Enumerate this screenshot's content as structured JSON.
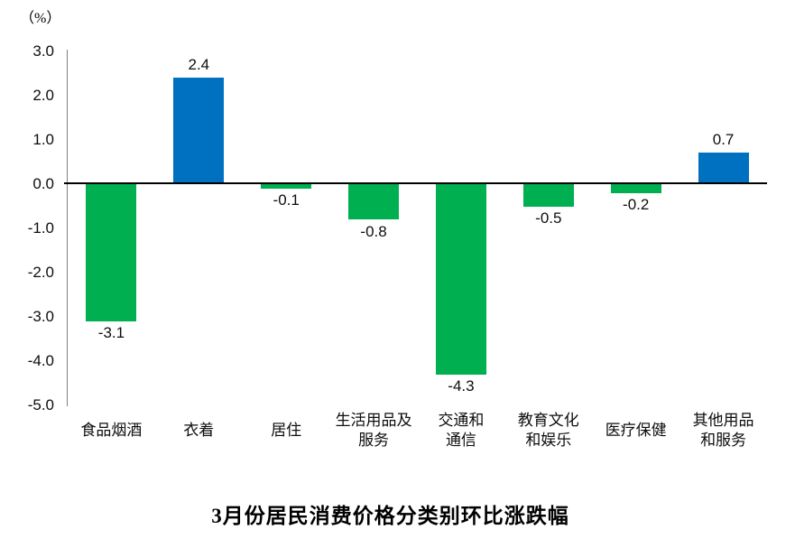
{
  "chart_data": {
    "type": "bar",
    "title": "3月份居民消费价格分类别环比涨跌幅",
    "ylabel": "（%）",
    "categories": [
      "食品烟酒",
      "衣着",
      "居住",
      "生活用品及服务",
      "交通和通信",
      "教育文化和娱乐",
      "医疗保健",
      "其他用品和服务"
    ],
    "category_lines": [
      [
        "食品烟酒"
      ],
      [
        "衣着"
      ],
      [
        "居住"
      ],
      [
        "生活用品及",
        "服务"
      ],
      [
        "交通和",
        "通信"
      ],
      [
        "教育文化",
        "和娱乐"
      ],
      [
        "医疗保健"
      ],
      [
        "其他用品",
        "和服务"
      ]
    ],
    "values": [
      -3.1,
      2.4,
      -0.1,
      -0.8,
      -4.3,
      -0.5,
      -0.2,
      0.7
    ],
    "value_labels": [
      "-3.1",
      "2.4",
      "-0.1",
      "-0.8",
      "-4.3",
      "-0.5",
      "-0.2",
      "0.7"
    ],
    "bar_colors": [
      "#00B050",
      "#0070C0",
      "#00B050",
      "#00B050",
      "#00B050",
      "#00B050",
      "#00B050",
      "#0070C0"
    ],
    "ylim": [
      -5.0,
      3.0
    ],
    "yticks": [
      3.0,
      2.0,
      1.0,
      0.0,
      -1.0,
      -2.0,
      -3.0,
      -4.0,
      -5.0
    ],
    "ytick_labels": [
      "3.0",
      "2.0",
      "1.0",
      "0.0",
      "-1.0",
      "-2.0",
      "-3.0",
      "-4.0",
      "-5.0"
    ],
    "grid": false,
    "legend": "none",
    "colors": {
      "positive_bar": "#0070C0",
      "negative_bar": "#00B050",
      "axis_line": "#808080",
      "zero_line": "#000000",
      "text": "#0d0d0d"
    }
  }
}
